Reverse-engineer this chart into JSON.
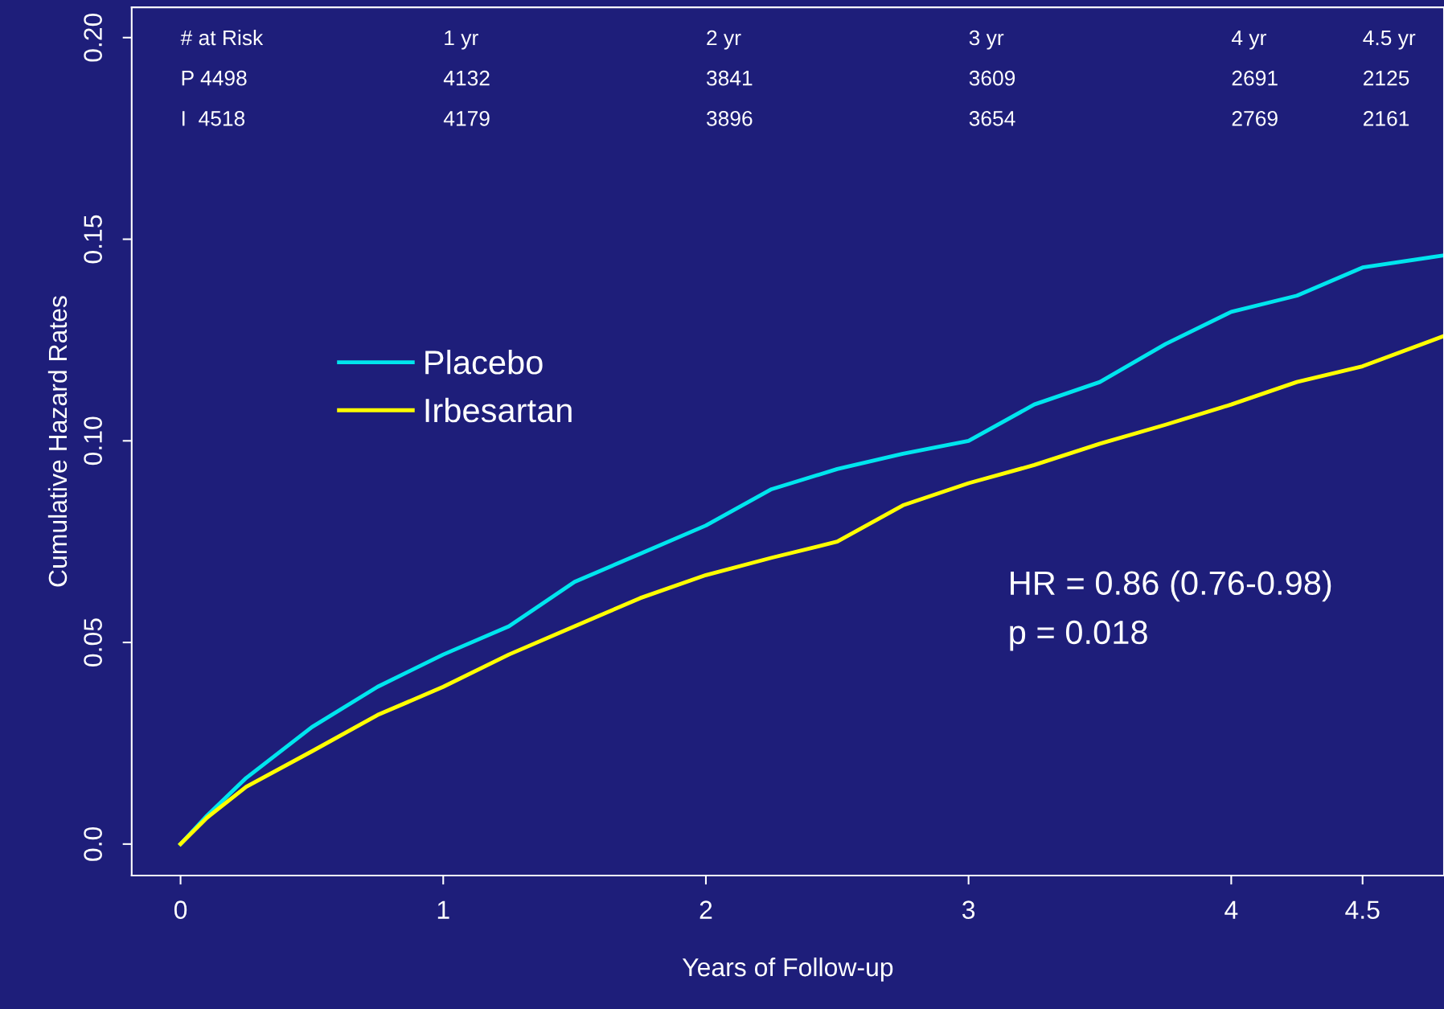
{
  "chart_data": {
    "type": "line",
    "xlabel": "Years of Follow-up",
    "ylabel": "Cumulative Hazard Rates",
    "x": [
      0,
      0.1,
      0.25,
      0.5,
      0.75,
      1.0,
      1.25,
      1.5,
      1.75,
      2.0,
      2.25,
      2.5,
      2.75,
      3.0,
      3.25,
      3.5,
      3.75,
      4.0,
      4.25,
      4.5,
      4.81
    ],
    "series": [
      {
        "name": "Placebo",
        "color": "#00e5ee",
        "values": [
          0,
          0.007,
          0.0164,
          0.029,
          0.039,
          0.047,
          0.054,
          0.065,
          0.072,
          0.079,
          0.088,
          0.093,
          0.0968,
          0.1,
          0.109,
          0.1146,
          0.124,
          0.132,
          0.136,
          0.143,
          0.146
        ]
      },
      {
        "name": "Irbesartan",
        "color": "#ffff00",
        "values": [
          0,
          0.0065,
          0.0142,
          0.023,
          0.032,
          0.039,
          0.047,
          0.054,
          0.061,
          0.0667,
          0.071,
          0.075,
          0.084,
          0.0895,
          0.094,
          0.0993,
          0.104,
          0.109,
          0.1146,
          0.1185,
          0.126
        ]
      }
    ],
    "xlim": [
      -0.186,
      4.81
    ],
    "ylim": [
      -0.0078,
      0.2075
    ],
    "xticks": [
      0,
      1,
      2,
      3,
      4,
      4.5
    ],
    "yticks": [
      {
        "value": 0,
        "label": "0.0"
      },
      {
        "value": 0.05,
        "label": "0.05"
      },
      {
        "value": 0.1,
        "label": "0.10"
      },
      {
        "value": 0.15,
        "label": "0.15"
      },
      {
        "value": 0.2,
        "label": "0.20"
      }
    ],
    "legend": "left",
    "grid": false,
    "annotations": [
      "# at Risk",
      "1 yr",
      "2 yr",
      "3 yr",
      "4 yr",
      "4.5 yr",
      "P 4498",
      "4132",
      "3841",
      "3609",
      "2691",
      "2125",
      "I  4518",
      "4179",
      "3896",
      "3654",
      "2769",
      "2161",
      "HR = 0.86 (0.76-0.98)",
      "p = 0.018"
    ]
  }
}
